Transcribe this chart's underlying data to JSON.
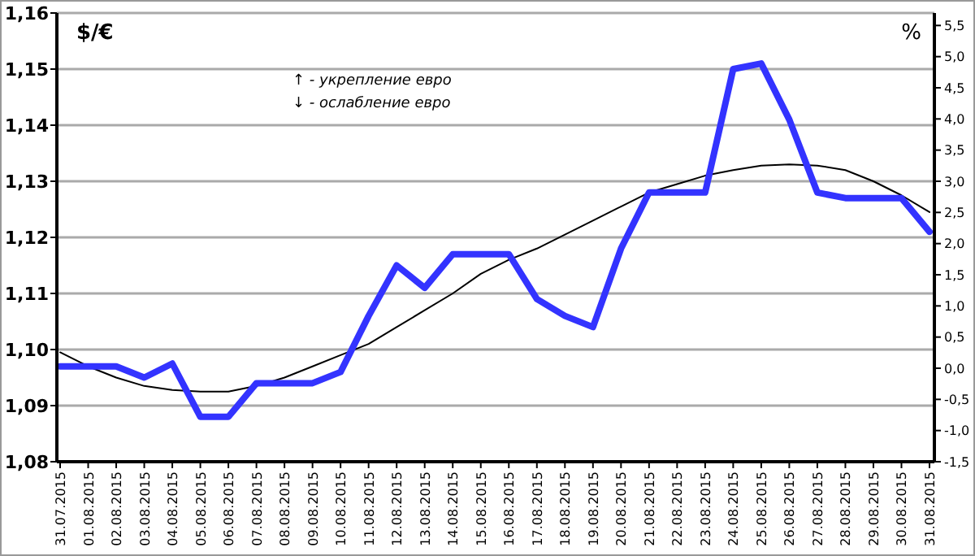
{
  "chart_data": {
    "type": "line",
    "ylabel": "$/€",
    "y2label": "%",
    "categories": [
      "31.07.2015",
      "01.08.2015",
      "02.08.2015",
      "03.08.2015",
      "04.08.2015",
      "05.08.2015",
      "06.08.2015",
      "07.08.2015",
      "08.08.2015",
      "09.08.2015",
      "10.08.2015",
      "11.08.2015",
      "12.08.2015",
      "13.08.2015",
      "14.08.2015",
      "15.08.2015",
      "16.08.2015",
      "17.08.2015",
      "18.08.2015",
      "19.08.2015",
      "20.08.2015",
      "21.08.2015",
      "22.08.2015",
      "23.08.2015",
      "24.08.2015",
      "25.08.2015",
      "26.08.2015",
      "27.08.2015",
      "28.08.2015",
      "29.08.2015",
      "30.08.2015",
      "31.08.2015"
    ],
    "series": [
      {
        "color": "#3333ff",
        "values": [
          1.097,
          1.097,
          1.097,
          1.095,
          1.0975,
          1.088,
          1.088,
          1.094,
          1.094,
          1.094,
          1.096,
          1.106,
          1.115,
          1.111,
          1.117,
          1.117,
          1.117,
          1.109,
          1.106,
          1.104,
          1.118,
          1.128,
          1.128,
          1.128,
          1.15,
          1.151,
          1.141,
          1.128,
          1.127,
          1.127,
          1.127,
          1.121
        ]
      },
      {
        "color": "#000000",
        "values": [
          1.0995,
          1.097,
          1.095,
          1.0935,
          1.0928,
          1.0925,
          1.0925,
          1.0935,
          1.095,
          1.097,
          1.099,
          1.101,
          1.104,
          1.107,
          1.11,
          1.1135,
          1.116,
          1.118,
          1.1205,
          1.123,
          1.1255,
          1.128,
          1.1295,
          1.131,
          1.132,
          1.1328,
          1.133,
          1.1328,
          1.132,
          1.13,
          1.1275,
          1.1245
        ]
      }
    ],
    "ylim": [
      1.08,
      1.16
    ],
    "yticks": [
      {
        "value": 1.08,
        "label": "1,08"
      },
      {
        "value": 1.09,
        "label": "1,09"
      },
      {
        "value": 1.1,
        "label": "1,10"
      },
      {
        "value": 1.11,
        "label": "1,11"
      },
      {
        "value": 1.12,
        "label": "1,12"
      },
      {
        "value": 1.13,
        "label": "1,13"
      },
      {
        "value": 1.14,
        "label": "1,14"
      },
      {
        "value": 1.15,
        "label": "1,15"
      },
      {
        "value": 1.16,
        "label": "1,16"
      }
    ],
    "y2lim": [
      -1.5,
      5.7
    ],
    "y2ticks": [
      {
        "value": -1.5,
        "label": "-1,5"
      },
      {
        "value": -1,
        "label": "-1,0"
      },
      {
        "value": -0.5,
        "label": "-0,5"
      },
      {
        "value": 0,
        "label": "0,0"
      },
      {
        "value": 0.5,
        "label": "0,5"
      },
      {
        "value": 1,
        "label": "1,0"
      },
      {
        "value": 1.5,
        "label": "1,5"
      },
      {
        "value": 2,
        "label": "2,0"
      },
      {
        "value": 2.5,
        "label": "2,5"
      },
      {
        "value": 3,
        "label": "3,0"
      },
      {
        "value": 3.5,
        "label": "3,5"
      },
      {
        "value": 4,
        "label": "4,0"
      },
      {
        "value": 4.5,
        "label": "4,5"
      },
      {
        "value": 5,
        "label": "5,0"
      },
      {
        "value": 5.5,
        "label": "5,5"
      }
    ],
    "grid": "y",
    "annotations": [
      "↑ - укрепление евро",
      "↓ - ослабление евро"
    ]
  }
}
